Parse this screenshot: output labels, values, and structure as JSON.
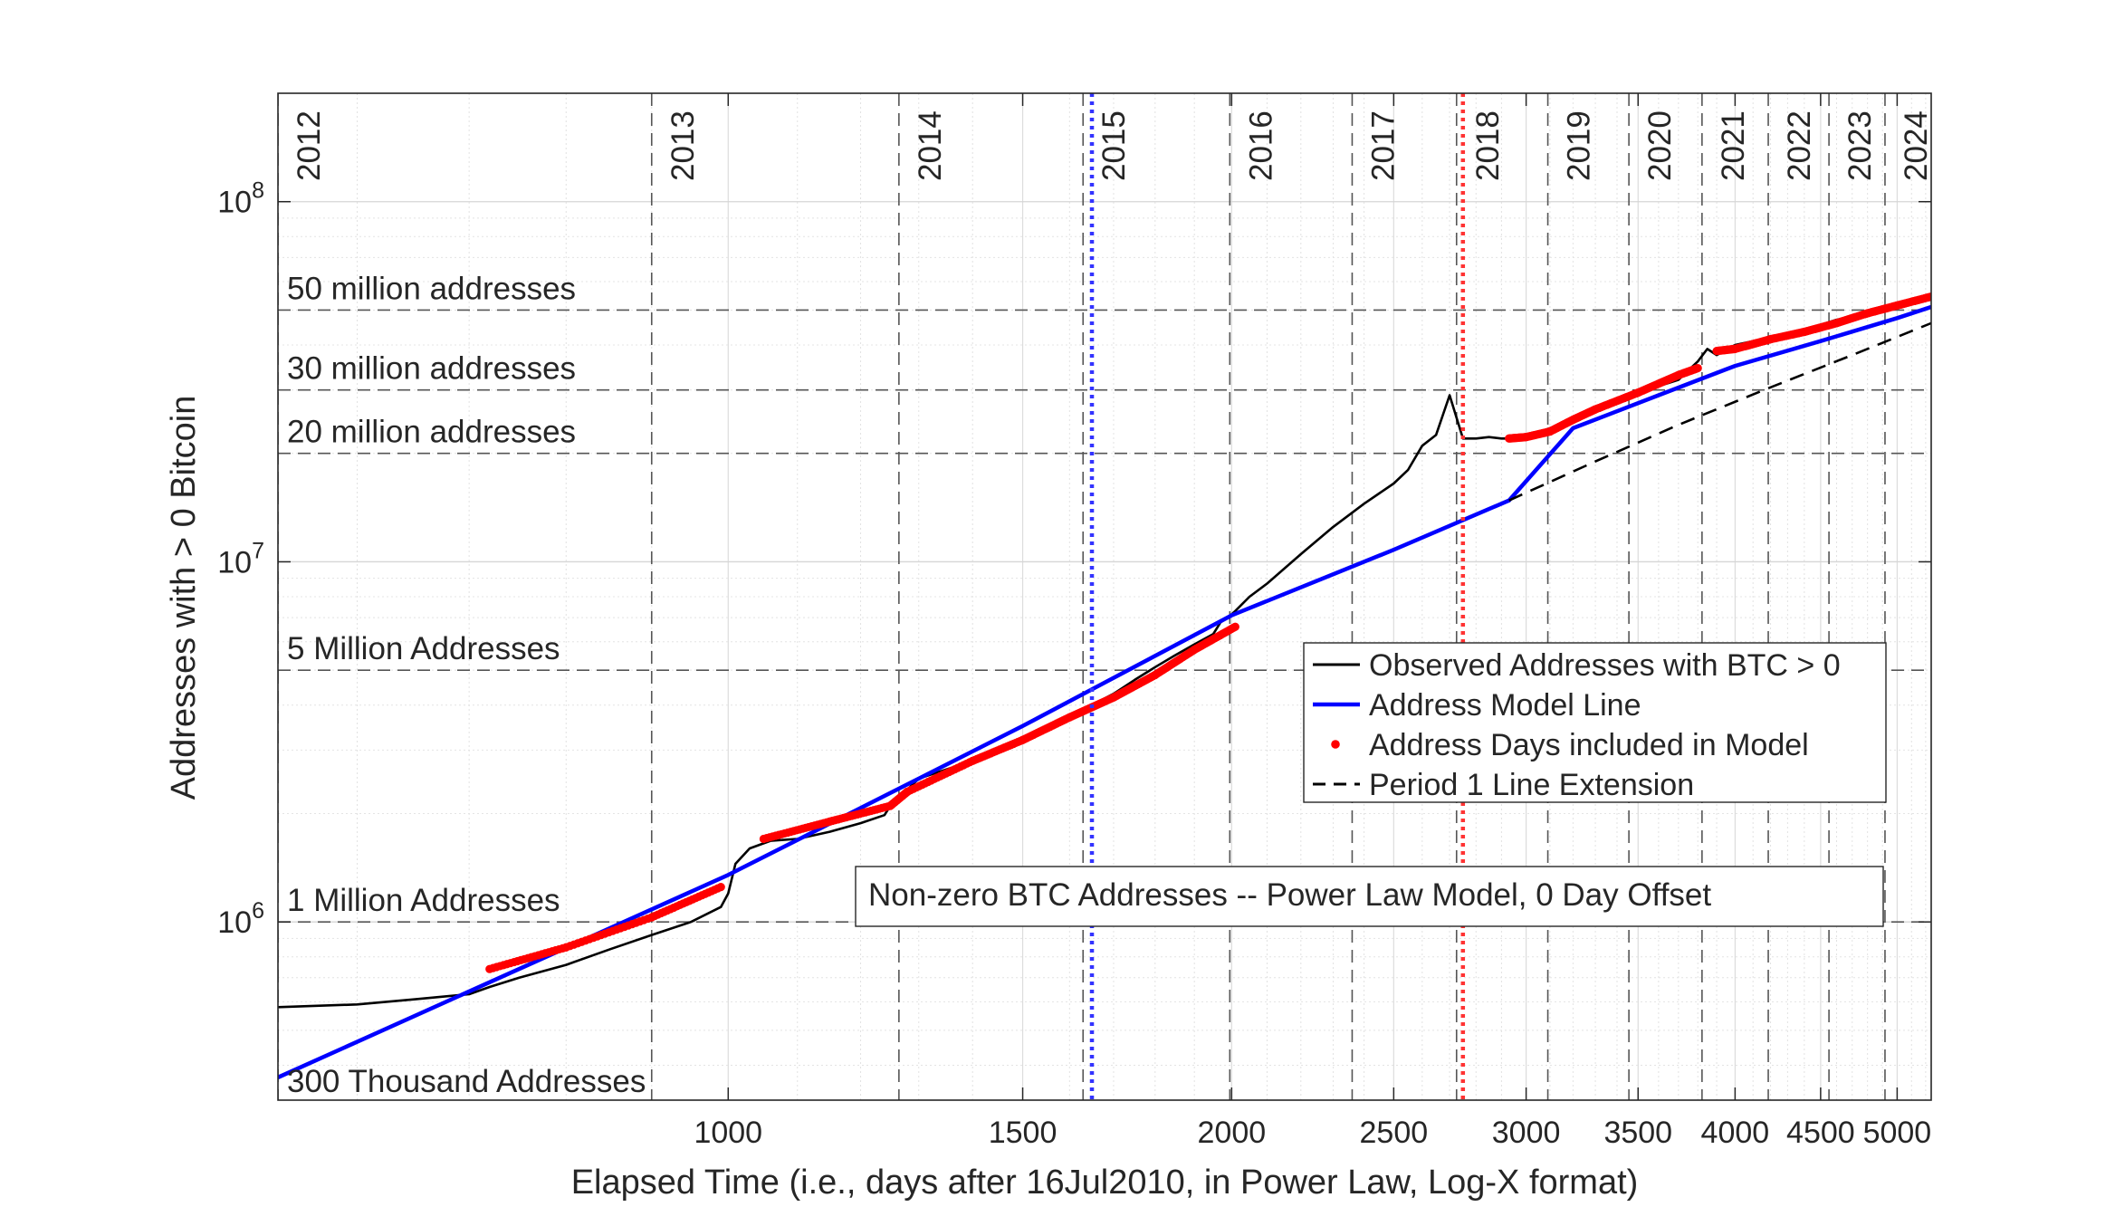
{
  "chart_data": {
    "type": "line",
    "title": "",
    "xlabel": "Elapsed Time (i.e., days after 16Jul2010, in Power Law, Log-X format)",
    "ylabel": "Addresses with > 0 Bitcoin",
    "x_scale": "log",
    "y_scale": "log",
    "xlim": [
      538,
      5240
    ],
    "ylim": [
      320000,
      200000000
    ],
    "grid": true,
    "x_ticks": [
      {
        "value": 1000,
        "label": "1000"
      },
      {
        "value": 1500,
        "label": "1500"
      },
      {
        "value": 2000,
        "label": "2000"
      },
      {
        "value": 2500,
        "label": "2500"
      },
      {
        "value": 3000,
        "label": "3000"
      },
      {
        "value": 3500,
        "label": "3500"
      },
      {
        "value": 4000,
        "label": "4000"
      },
      {
        "value": 4500,
        "label": "4500"
      },
      {
        "value": 5000,
        "label": "5000"
      }
    ],
    "y_ticks": [
      {
        "value": 1000000,
        "base": "10",
        "exp": "6"
      },
      {
        "value": 10000000,
        "base": "10",
        "exp": "7"
      },
      {
        "value": 100000000,
        "base": "10",
        "exp": "8"
      }
    ],
    "year_markers": [
      {
        "label": "2012",
        "x": 538
      },
      {
        "label": "2013",
        "x": 900
      },
      {
        "label": "2014",
        "x": 1265
      },
      {
        "label": "2015",
        "x": 1630
      },
      {
        "label": "2016",
        "x": 1995
      },
      {
        "label": "2017",
        "x": 2361
      },
      {
        "label": "2018",
        "x": 2726
      },
      {
        "label": "2019",
        "x": 3091
      },
      {
        "label": "2020",
        "x": 3456
      },
      {
        "label": "2021",
        "x": 3822
      },
      {
        "label": "2022",
        "x": 4187
      },
      {
        "label": "2023",
        "x": 4552
      },
      {
        "label": "2024",
        "x": 4917
      }
    ],
    "vertical_markers": [
      {
        "x": 1650,
        "color": "#3333ff"
      },
      {
        "x": 2750,
        "color": "#ff3333"
      }
    ],
    "reference_lines": [
      {
        "label": "50 million addresses",
        "y": 50000000
      },
      {
        "label": "30 million addresses",
        "y": 30000000
      },
      {
        "label": "20 million addresses",
        "y": 20000000
      },
      {
        "label": "5 Million Addresses",
        "y": 5000000
      },
      {
        "label": "1 Million Addresses",
        "y": 1000000
      },
      {
        "label": "300 Thousand Addresses",
        "y": 300000
      }
    ],
    "annotation": "Non-zero BTC Addresses -- Power Law Model, 0 Day Offset",
    "legend_position": "right",
    "series": [
      {
        "name": "Observed Addresses with BTC > 0",
        "style": "line",
        "color": "#000000",
        "x": [
          538,
          600,
          650,
          700,
          720,
          750,
          800,
          850,
          900,
          950,
          990,
          1000,
          1010,
          1030,
          1060,
          1100,
          1150,
          1200,
          1240,
          1250,
          1300,
          1350,
          1400,
          1450,
          1500,
          1550,
          1600,
          1650,
          1700,
          1750,
          1800,
          1850,
          1900,
          1950,
          1970,
          1990,
          2010,
          2050,
          2100,
          2200,
          2300,
          2400,
          2500,
          2550,
          2600,
          2650,
          2700,
          2750,
          2800,
          2850,
          2900,
          2950,
          3000,
          3100,
          3200,
          3300,
          3500,
          3700,
          3800,
          3850,
          3900,
          4000,
          4200,
          4400,
          4600,
          4800,
          5000,
          5200
        ],
        "y": [
          580000,
          590000,
          610000,
          630000,
          660000,
          700000,
          760000,
          840000,
          920000,
          1000000,
          1100000,
          1200000,
          1450000,
          1600000,
          1680000,
          1700000,
          1780000,
          1880000,
          1980000,
          2100000,
          2500000,
          2650000,
          2800000,
          3000000,
          3250000,
          3500000,
          3700000,
          4000000,
          4300000,
          4700000,
          5100000,
          5500000,
          5900000,
          6300000,
          6800000,
          7000000,
          7300000,
          8000000,
          8700000,
          10500000,
          12500000,
          14500000,
          16500000,
          18000000,
          21000000,
          22500000,
          29000000,
          22000000,
          22000000,
          22200000,
          22000000,
          22000000,
          22300000,
          23500000,
          25000000,
          27000000,
          29500000,
          32000000,
          36000000,
          39000000,
          37500000,
          40000000,
          42000000,
          44000000,
          47000000,
          49000000,
          51500000,
          54500000
        ]
      },
      {
        "name": "Address Model Line",
        "style": "line",
        "color": "#0000ff",
        "x": [
          538,
          1000,
          1500,
          2000,
          2500,
          2930,
          3200,
          3600,
          4000,
          4500,
          5000,
          5240
        ],
        "y": [
          370000,
          1350000,
          3500000,
          7100000,
          10800000,
          14800000,
          23500000,
          29000000,
          35000000,
          41000000,
          47500000,
          51000000
        ]
      },
      {
        "name": "Address Days included in Model",
        "style": "points",
        "color": "#ff0000",
        "segments": [
          {
            "x": [
              720,
              800,
              900,
              990
            ],
            "y": [
              740000,
              850000,
              1030000,
              1250000
            ]
          },
          {
            "x": [
              1050,
              1150,
              1250,
              1280
            ],
            "y": [
              1700000,
              1900000,
              2100000,
              2300000
            ]
          },
          {
            "x": [
              1280,
              1400,
              1500,
              1600,
              1700,
              1800,
              1900,
              2010
            ],
            "y": [
              2300000,
              2800000,
              3200000,
              3700000,
              4200000,
              4850000,
              5700000,
              6600000
            ]
          },
          {
            "x": [
              2930,
              3000,
              3100,
              3200,
              3300,
              3500,
              3700,
              3800
            ],
            "y": [
              22000000,
              22200000,
              23000000,
              24800000,
              26500000,
              29500000,
              33000000,
              34500000
            ]
          },
          {
            "x": [
              3900,
              4000,
              4200,
              4400,
              4600,
              4800,
              5000,
              5240
            ],
            "y": [
              38500000,
              39000000,
              41500000,
              43500000,
              46000000,
              49000000,
              51500000,
              54500000
            ]
          }
        ]
      },
      {
        "name": "Period 1 Line Extension",
        "style": "dashed",
        "color": "#000000",
        "x": [
          2930,
          3300,
          3700,
          4200,
          4700,
          5240
        ],
        "y": [
          14800000,
          19000000,
          24000000,
          30500000,
          37500000,
          46000000
        ]
      }
    ]
  }
}
